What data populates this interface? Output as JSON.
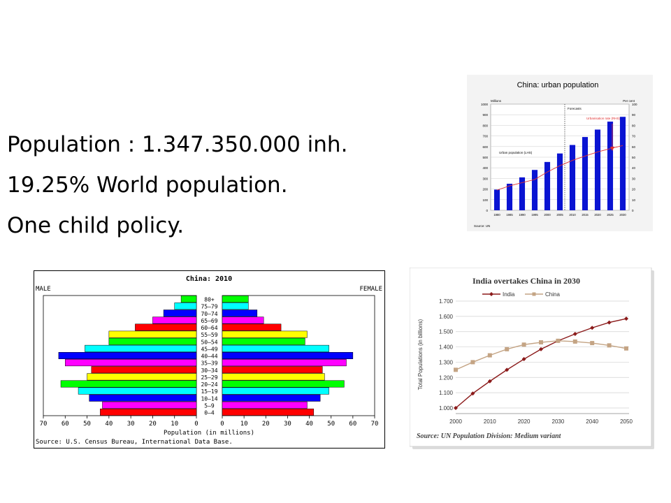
{
  "slide": {
    "lines": [
      "Population : 1.347.350.000 inh.",
      "19.25% World population.",
      "One child policy."
    ]
  },
  "chart_data": [
    {
      "type": "bar",
      "title": "China: urban population",
      "left_axis_label": "Millions",
      "right_axis_label": "Per cent",
      "ylim": [
        0,
        1000
      ],
      "ylim_right": [
        0,
        100
      ],
      "yticks": [
        0,
        100,
        200,
        300,
        400,
        500,
        600,
        700,
        800,
        900,
        1000
      ],
      "yticks_right": [
        0,
        10,
        20,
        30,
        40,
        50,
        60,
        70,
        80,
        90,
        100
      ],
      "categories": [
        "1980",
        "1985",
        "1990",
        "1995",
        "2000",
        "2005",
        "2010",
        "2015",
        "2020",
        "2025",
        "2030"
      ],
      "series": [
        {
          "name": "Urban population (LHS)",
          "kind": "bar",
          "color": "#0a14d2",
          "values": [
            195,
            250,
            310,
            380,
            455,
            535,
            615,
            690,
            760,
            835,
            880
          ]
        },
        {
          "name": "Urbanisation rate (RHS)",
          "kind": "line",
          "color": "#e03030",
          "values": [
            19,
            23,
            26,
            29,
            36,
            42,
            47,
            51,
            55,
            58,
            61
          ]
        }
      ],
      "forecast_label": "Forecasts",
      "forecast_from": "2010",
      "source": "Source: UN",
      "grid": true
    },
    {
      "type": "bar",
      "subtype": "population-pyramid",
      "title": "China: 2010",
      "left_label": "MALE",
      "right_label": "FEMALE",
      "xlabel": "Population (in millions)",
      "source": "Source: U.S. Census Bureau, International Data Base.",
      "xlim": [
        0,
        70
      ],
      "xticks": [
        70,
        60,
        50,
        40,
        30,
        20,
        10,
        0
      ],
      "categories": [
        "0–4",
        "5–9",
        "10–14",
        "15–19",
        "20–24",
        "25–29",
        "30–34",
        "35–39",
        "40–44",
        "45–49",
        "50–54",
        "55–59",
        "60–64",
        "65–69",
        "70–74",
        "75–79",
        "80+"
      ],
      "colors": [
        "#ff0000",
        "#ff00ff",
        "#0000ff",
        "#00ffff",
        "#00ff00",
        "#ffff00",
        "#ff0000",
        "#ff00ff",
        "#0000ff",
        "#00ffff",
        "#00ff00",
        "#ffff00",
        "#ff0000",
        "#ff00ff",
        "#0000ff",
        "#00ffff",
        "#00ff00"
      ],
      "series": [
        {
          "name": "MALE",
          "values": [
            44,
            43,
            49,
            54,
            62,
            50,
            48,
            60,
            63,
            51,
            40,
            40,
            28,
            20,
            15,
            10,
            7
          ]
        },
        {
          "name": "FEMALE",
          "values": [
            42,
            39,
            45,
            49,
            56,
            47,
            46,
            57,
            60,
            49,
            38,
            39,
            27,
            19,
            16,
            12,
            12
          ]
        }
      ]
    },
    {
      "type": "line",
      "title": "India overtakes China in 2030",
      "ylabel": "Total Populations (in billions)",
      "x": [
        2000,
        2005,
        2010,
        2015,
        2020,
        2025,
        2030,
        2035,
        2040,
        2045,
        2050
      ],
      "xticks": [
        "2000",
        "2010",
        "2020",
        "2030",
        "2040",
        "2050"
      ],
      "yticks": [
        "1.000",
        "1.100",
        "1.200",
        "1.300",
        "1.400",
        "1.500",
        "1.600",
        "1.700"
      ],
      "ylim": [
        1.0,
        1.7
      ],
      "series": [
        {
          "name": "India",
          "color": "#8b1a1a",
          "marker": "diamond",
          "values": [
            1.0,
            1.095,
            1.175,
            1.25,
            1.32,
            1.385,
            1.44,
            1.485,
            1.525,
            1.56,
            1.585
          ]
        },
        {
          "name": "China",
          "color": "#c4a484",
          "marker": "square",
          "values": [
            1.25,
            1.3,
            1.345,
            1.385,
            1.415,
            1.43,
            1.44,
            1.435,
            1.425,
            1.41,
            1.39
          ]
        }
      ],
      "source": "Source: UN Population Division: Medium variant"
    }
  ]
}
